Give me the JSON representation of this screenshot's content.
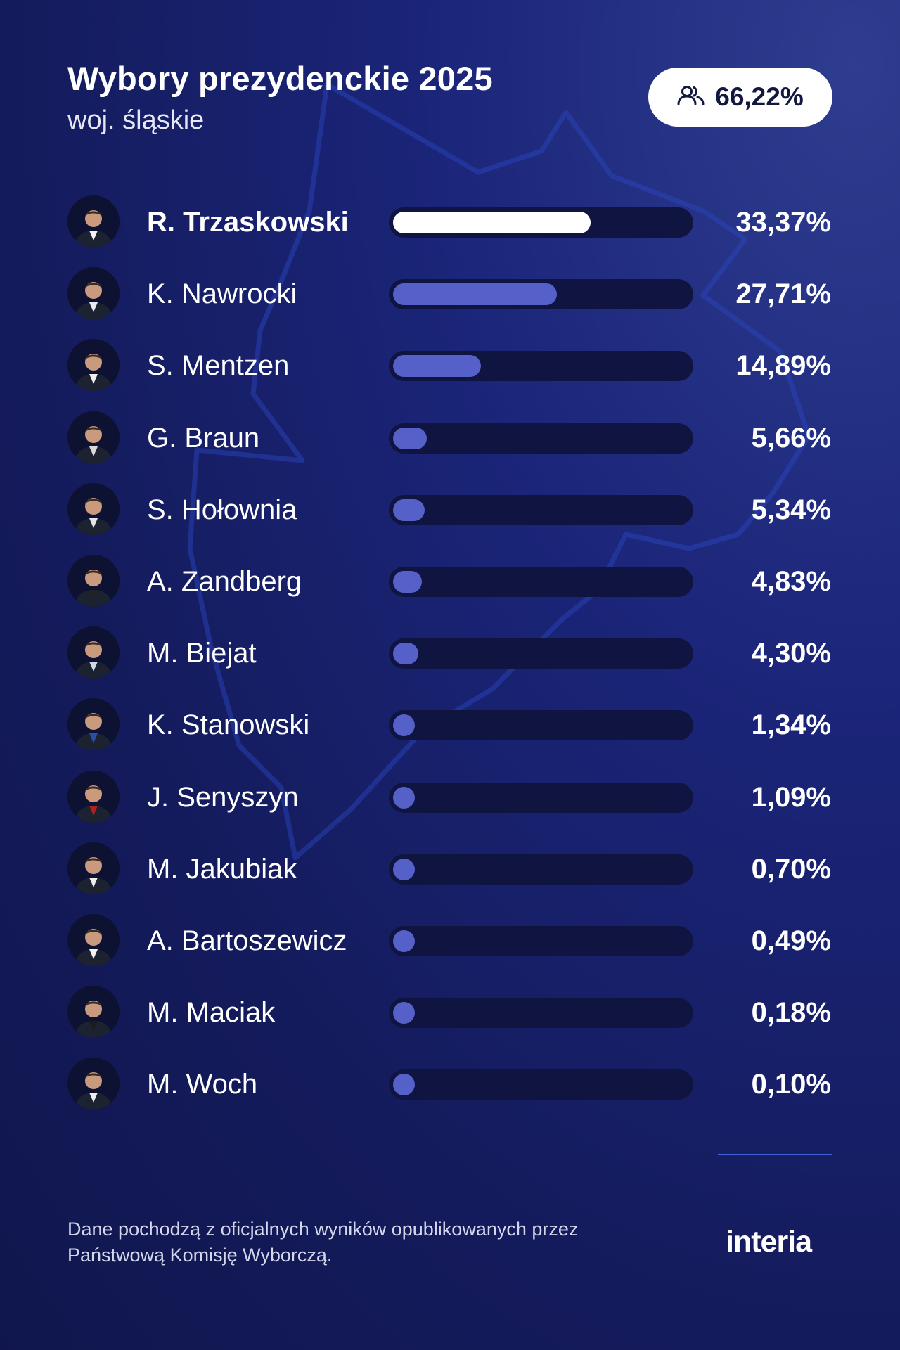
{
  "header": {
    "title": "Wybory prezydenckie 2025",
    "subtitle": "woj. śląskie",
    "turnout": "66,22%",
    "turnout_icon": "people-icon"
  },
  "chart_data": {
    "type": "bar",
    "orientation": "horizontal",
    "title": "Wybory prezydenckie 2025",
    "subtitle": "woj. śląskie",
    "ylim": [
      0,
      50
    ],
    "highlight_color": "#ffffff",
    "bar_color": "#5560c9",
    "track_color": "#0f1540",
    "categories": [
      "R. Trzaskowski",
      "K. Nawrocki",
      "S. Mentzen",
      "G. Braun",
      "S. Hołownia",
      "A. Zandberg",
      "M. Biejat",
      "K. Stanowski",
      "J. Senyszyn",
      "M. Jakubiak",
      "A. Bartoszewicz",
      "M. Maciak",
      "M. Woch"
    ],
    "values": [
      33.37,
      27.71,
      14.89,
      5.66,
      5.34,
      4.83,
      4.3,
      1.34,
      1.09,
      0.7,
      0.49,
      0.18,
      0.1
    ],
    "labels": [
      "33,37%",
      "27,71%",
      "14,89%",
      "5,66%",
      "5,34%",
      "4,83%",
      "4,30%",
      "1,34%",
      "1,09%",
      "0,70%",
      "0,49%",
      "0,18%",
      "0,10%"
    ]
  },
  "footer": {
    "note": "Dane pochodzą z oficjalnych wyników opublikowanych przez Państwową Komisję Wyborczą.",
    "logo": "interia"
  }
}
